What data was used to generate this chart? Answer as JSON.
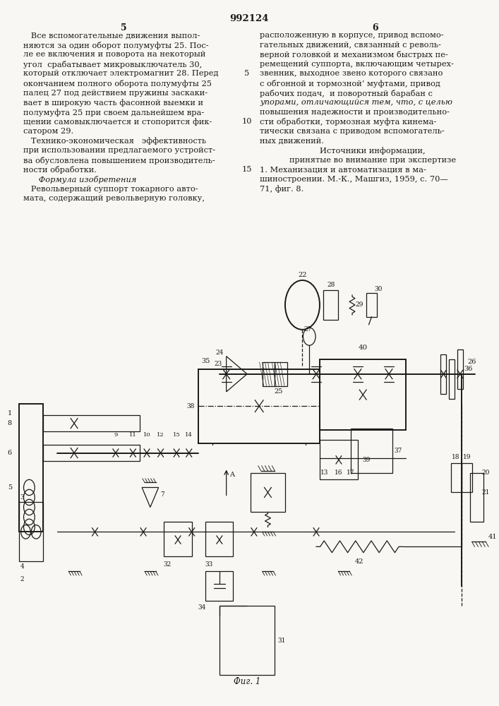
{
  "page_number": "992124",
  "left_col_number": "5",
  "right_col_number": "6",
  "background_color": "#f8f7f3",
  "text_color": "#1a1a1a",
  "left_column_text": [
    "   Все вспомогательные движения выпол-",
    "няются за один оборот полумуфты 25. Пос-",
    "ле ее включения и поворота на некоторый",
    "угол  срабатывает микровыключатель 30,",
    "который отключает электромагнит 28. Перед",
    "окончанием полного оборота полумуфты 25",
    "палец 27 под действием пружины заскаки-",
    "вает в широкую часть фасонной выемки и",
    "полумуфта 25 при своем дальнейшем вра-",
    "щении самовыключается и стопорится фик-",
    "сатором 29.",
    "   Технико-экономическая   эффективность",
    "при использовании предлагаемого устройст-",
    "ва обусловлена повышением производитель-",
    "ности обработки.",
    "      Формула изобретения",
    "   Револьверный суппорт токарного авто-",
    "мата, содержащий револьверную головку,"
  ],
  "right_column_text": [
    "расположенную в корпусе, привод вспомо-",
    "гательных движений, связанный с револь-",
    "верной головкой и механизмом быстрых пе-",
    "ремещений суппорта, включающим четырех-",
    "звенник, выходное звено которого связано",
    "с обгонной и тормозной’ муфтами, привод",
    "рабочих подач,  и поворотный барабан с",
    "упорами, отличающийся тем, что, с целью",
    "повышения надежности и производительно-",
    "сти обработки, тормозная муфта кинема-",
    "тически связана с приводом вспомогатель-",
    "ных движений."
  ],
  "sources_header": "Источники информации,",
  "sources_subheader": "принятые во внимание при экспертизе",
  "sources_text": "1. Механизация и автоматизация в ма-\nшиностроении. М.-К., Машгиз, 1959, с. 70—\n71, фиг. 8.",
  "fig_label": "Фиг. 1"
}
